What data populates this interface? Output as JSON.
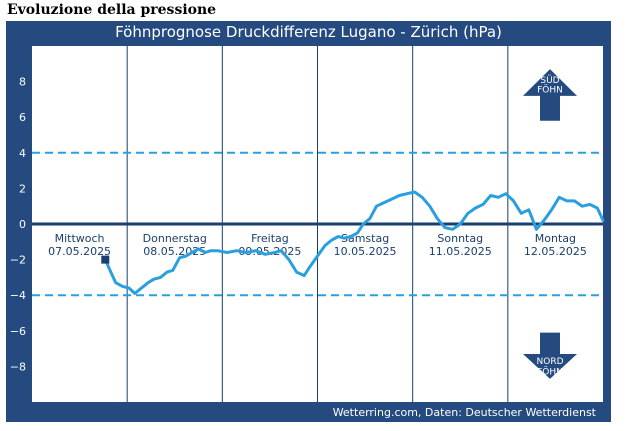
{
  "page": {
    "title": "Evoluzione della pressione"
  },
  "chart_data": {
    "type": "line",
    "title": "Föhnprognose Druckdifferenz Lugano - Zürich (hPa)",
    "source": "Wetterring.com, Daten: Deutscher Wetterdienst",
    "ylim": [
      -10,
      10
    ],
    "yticks": [
      8,
      6,
      4,
      2,
      0,
      -2,
      -4,
      -6,
      -8
    ],
    "ytick_labels": [
      "8",
      "6",
      "4",
      "2",
      "0",
      "−2",
      "−4",
      "−6",
      "−8"
    ],
    "xlim": [
      0,
      6
    ],
    "thresholds": [
      4,
      -4
    ],
    "zero_line": 0,
    "grid": "vertical",
    "days": [
      {
        "name": "Mittwoch",
        "date": "07.05.2025"
      },
      {
        "name": "Donnerstag",
        "date": "08.05.2025"
      },
      {
        "name": "Freitag",
        "date": "09.05.2025"
      },
      {
        "name": "Samstag",
        "date": "10.05.2025"
      },
      {
        "name": "Sonntag",
        "date": "11.05.2025"
      },
      {
        "name": "Montag",
        "date": "12.05.2025"
      }
    ],
    "indicators": {
      "top_line1": "SÜD",
      "top_line2": "FÖHN",
      "bottom_line1": "NORD",
      "bottom_line2": "FÖHN"
    },
    "colors": {
      "line": "#2a9fe0",
      "zero": "#1a3f6e",
      "threshold": "#2a9fe0",
      "grid": "#1a3f6e",
      "arrow": "#244a80",
      "marker": "#1a3f6e"
    },
    "series": [
      {
        "x": [
          0.77,
          0.82,
          0.88,
          0.95,
          1.02,
          1.08,
          1.15,
          1.22,
          1.28,
          1.35,
          1.42,
          1.48,
          1.55,
          1.62,
          1.68,
          1.75,
          1.82,
          1.88,
          1.95,
          2.05,
          2.15,
          2.25,
          2.35,
          2.45,
          2.55,
          2.62,
          2.7,
          2.78,
          2.86,
          2.92,
          3.0,
          3.08,
          3.15,
          3.22,
          3.28,
          3.35,
          3.42,
          3.48,
          3.55,
          3.62,
          3.7,
          3.78,
          3.86,
          3.94,
          4.02,
          4.1,
          4.18,
          4.26,
          4.34,
          4.42,
          4.5,
          4.58,
          4.66,
          4.74,
          4.82,
          4.9,
          4.98,
          5.06,
          5.14,
          5.22,
          5.3,
          5.38,
          5.46,
          5.54,
          5.62,
          5.7,
          5.78,
          5.86,
          5.94,
          6.0
        ],
        "y": [
          -2.0,
          -2.6,
          -3.3,
          -3.5,
          -3.6,
          -3.9,
          -3.6,
          -3.3,
          -3.1,
          -3.0,
          -2.7,
          -2.6,
          -1.9,
          -1.8,
          -1.6,
          -1.4,
          -1.6,
          -1.5,
          -1.5,
          -1.6,
          -1.5,
          -1.6,
          -1.5,
          -1.7,
          -1.6,
          -1.5,
          -2.0,
          -2.7,
          -2.9,
          -2.4,
          -1.8,
          -1.2,
          -0.9,
          -0.7,
          -0.8,
          -0.7,
          -0.5,
          0.0,
          0.3,
          1.0,
          1.2,
          1.4,
          1.6,
          1.7,
          1.8,
          1.5,
          1.0,
          0.3,
          -0.2,
          -0.3,
          0.0,
          0.6,
          0.9,
          1.1,
          1.6,
          1.5,
          1.7,
          1.3,
          0.6,
          0.8,
          -0.3,
          0.2,
          0.8,
          1.5,
          1.3,
          1.3,
          1.0,
          1.1,
          0.9,
          0.2
        ]
      }
    ]
  }
}
